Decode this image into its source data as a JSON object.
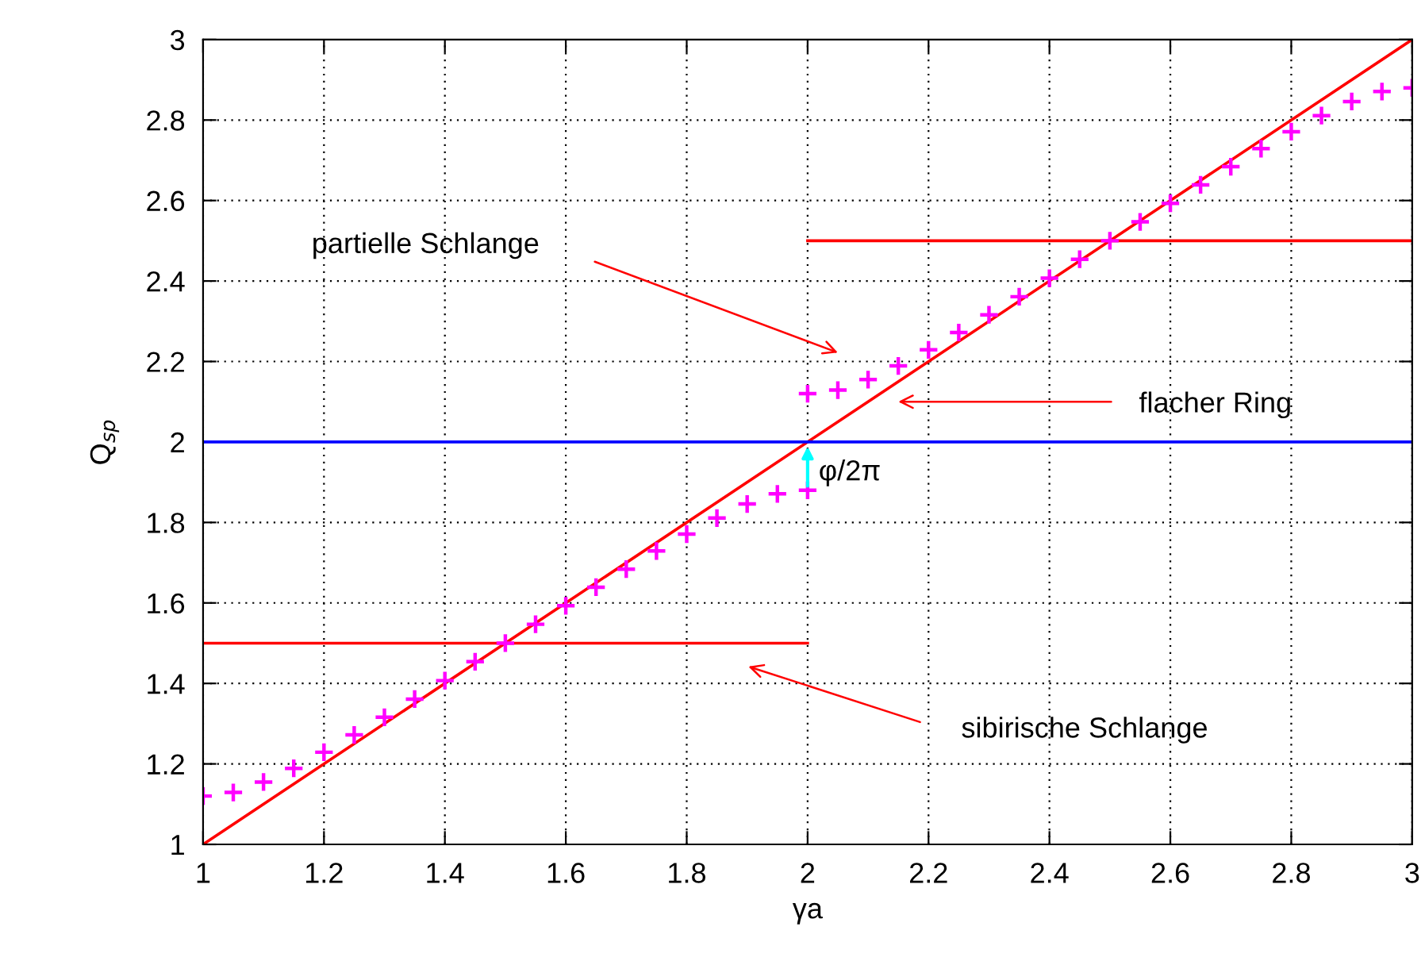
{
  "chart_data": {
    "type": "line",
    "xlabel": "γa",
    "ylabel": "Q$_{sp}$",
    "xlim": [
      1,
      3
    ],
    "ylim": [
      1,
      3
    ],
    "xticks": [
      1,
      1.2,
      1.4,
      1.6,
      1.8,
      2,
      2.2,
      2.4,
      2.6,
      2.8,
      3
    ],
    "yticks": [
      1,
      1.2,
      1.4,
      1.6,
      1.8,
      2,
      2.2,
      2.4,
      2.6,
      2.8,
      3
    ],
    "grid": true,
    "legend": false,
    "series": [
      {
        "color": "#ff0000",
        "x": [
          1,
          3
        ],
        "values": [
          1,
          3
        ]
      },
      {
        "color": "#ff0000",
        "x": [
          1,
          2
        ],
        "values": [
          1.5,
          1.5
        ]
      },
      {
        "color": "#ff0000",
        "x": [
          2,
          3
        ],
        "values": [
          2.5,
          2.5
        ]
      },
      {
        "color": "#0000ff",
        "x": [
          1,
          3
        ],
        "values": [
          2,
          2
        ]
      },
      {
        "type": "scatter",
        "marker": "cross",
        "color": "#ff00ff",
        "x": [
          1,
          1.05,
          1.1,
          1.15,
          1.2,
          1.25,
          1.3,
          1.35,
          1.4,
          1.45,
          1.5,
          1.55,
          1.6,
          1.65,
          1.7,
          1.75,
          1.8,
          1.85,
          1.9,
          1.95,
          2,
          2,
          2.05,
          2.1,
          2.15,
          2.2,
          2.25,
          2.3,
          2.35,
          2.4,
          2.45,
          2.5,
          2.55,
          2.6,
          2.65,
          2.7,
          2.75,
          2.8,
          2.85,
          2.9,
          2.95,
          3
        ],
        "values": [
          1.12,
          1.129,
          1.155,
          1.189,
          1.229,
          1.272,
          1.316,
          1.361,
          1.407,
          1.454,
          1.5,
          1.547,
          1.593,
          1.639,
          1.684,
          1.729,
          1.771,
          1.811,
          1.846,
          1.871,
          1.88,
          2.12,
          2.129,
          2.155,
          2.189,
          2.229,
          2.272,
          2.316,
          2.361,
          2.407,
          2.454,
          2.5,
          2.547,
          2.593,
          2.639,
          2.684,
          2.729,
          2.771,
          2.811,
          2.846,
          2.871,
          2.88
        ]
      }
    ],
    "annotations": [
      "partielle Schlange",
      "flacher Ring",
      "sibirische Schlange",
      {
        "text": "φ/2π",
        "x": 2,
        "y": 2
      }
    ]
  }
}
